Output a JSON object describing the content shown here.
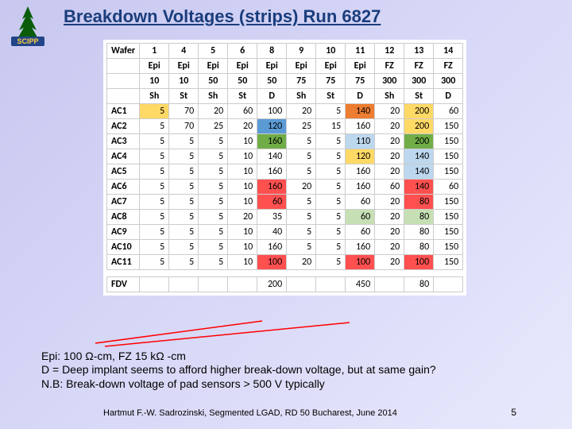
{
  "title": "Breakdown Voltages (strips) Run 6827",
  "logo_label": "SCIPP",
  "wafer_label": "Wafer",
  "header": {
    "cols": [
      "1",
      "4",
      "5",
      "6",
      "8",
      "9",
      "10",
      "11",
      "12",
      "13",
      "14"
    ],
    "mat": [
      "Epi",
      "Epi",
      "Epi",
      "Epi",
      "Epi",
      "Epi",
      "Epi",
      "Epi",
      "FZ",
      "FZ",
      "FZ"
    ],
    "thk": [
      "10",
      "10",
      "50",
      "50",
      "50",
      "75",
      "75",
      "75",
      "300",
      "300",
      "300"
    ],
    "typ": [
      "Sh",
      "St",
      "Sh",
      "St",
      "D",
      "Sh",
      "St",
      "D",
      "Sh",
      "St",
      "D"
    ]
  },
  "rows": [
    {
      "h": "AC1",
      "c": [
        {
          "v": "5",
          "k": "c-y"
        },
        {
          "v": "70"
        },
        {
          "v": "20"
        },
        {
          "v": "60"
        },
        {
          "v": "100"
        },
        {
          "v": "20"
        },
        {
          "v": "5"
        },
        {
          "v": "140",
          "k": "c-o"
        },
        {
          "v": "20"
        },
        {
          "v": "200",
          "k": "c-y"
        },
        {
          "v": "60"
        }
      ]
    },
    {
      "h": "AC2",
      "c": [
        {
          "v": "5"
        },
        {
          "v": "70"
        },
        {
          "v": "25"
        },
        {
          "v": "20"
        },
        {
          "v": "120",
          "k": "c-b"
        },
        {
          "v": "25"
        },
        {
          "v": "15"
        },
        {
          "v": "160"
        },
        {
          "v": "20"
        },
        {
          "v": "200",
          "k": "c-y"
        },
        {
          "v": "150"
        }
      ]
    },
    {
      "h": "AC3",
      "c": [
        {
          "v": "5"
        },
        {
          "v": "5"
        },
        {
          "v": "5"
        },
        {
          "v": "10"
        },
        {
          "v": "160",
          "k": "c-g"
        },
        {
          "v": "5"
        },
        {
          "v": "5"
        },
        {
          "v": "110",
          "k": "c-lb"
        },
        {
          "v": "20"
        },
        {
          "v": "200",
          "k": "c-g"
        },
        {
          "v": "150"
        }
      ]
    },
    {
      "h": "AC4",
      "c": [
        {
          "v": "5"
        },
        {
          "v": "5"
        },
        {
          "v": "5"
        },
        {
          "v": "10"
        },
        {
          "v": "140"
        },
        {
          "v": "5"
        },
        {
          "v": "5"
        },
        {
          "v": "120",
          "k": "c-y"
        },
        {
          "v": "20"
        },
        {
          "v": "140",
          "k": "c-lb"
        },
        {
          "v": "150"
        }
      ]
    },
    {
      "h": "AC5",
      "c": [
        {
          "v": "5"
        },
        {
          "v": "5"
        },
        {
          "v": "5"
        },
        {
          "v": "10"
        },
        {
          "v": "160"
        },
        {
          "v": "5"
        },
        {
          "v": "5"
        },
        {
          "v": "160"
        },
        {
          "v": "20"
        },
        {
          "v": "140",
          "k": "c-lb"
        },
        {
          "v": "150"
        }
      ]
    },
    {
      "h": "AC6",
      "c": [
        {
          "v": "5"
        },
        {
          "v": "5"
        },
        {
          "v": "5"
        },
        {
          "v": "10"
        },
        {
          "v": "160",
          "k": "c-r"
        },
        {
          "v": "20"
        },
        {
          "v": "5"
        },
        {
          "v": "160"
        },
        {
          "v": "60"
        },
        {
          "v": "140",
          "k": "c-r"
        },
        {
          "v": "60"
        }
      ]
    },
    {
      "h": "AC7",
      "c": [
        {
          "v": "5"
        },
        {
          "v": "5"
        },
        {
          "v": "5"
        },
        {
          "v": "10"
        },
        {
          "v": "60",
          "k": "c-r"
        },
        {
          "v": "5"
        },
        {
          "v": "5"
        },
        {
          "v": "60"
        },
        {
          "v": "20"
        },
        {
          "v": "80",
          "k": "c-r"
        },
        {
          "v": "150"
        }
      ]
    },
    {
      "h": "AC8",
      "c": [
        {
          "v": "5"
        },
        {
          "v": "5"
        },
        {
          "v": "5"
        },
        {
          "v": "20"
        },
        {
          "v": "35"
        },
        {
          "v": "5"
        },
        {
          "v": "5"
        },
        {
          "v": "60",
          "k": "c-lg"
        },
        {
          "v": "20"
        },
        {
          "v": "80",
          "k": "c-lg"
        },
        {
          "v": "150"
        }
      ]
    },
    {
      "h": "AC9",
      "c": [
        {
          "v": "5"
        },
        {
          "v": "5"
        },
        {
          "v": "5"
        },
        {
          "v": "10"
        },
        {
          "v": "40"
        },
        {
          "v": "5"
        },
        {
          "v": "5"
        },
        {
          "v": "60"
        },
        {
          "v": "20"
        },
        {
          "v": "80"
        },
        {
          "v": "150"
        }
      ]
    },
    {
      "h": "AC10",
      "c": [
        {
          "v": "5"
        },
        {
          "v": "5"
        },
        {
          "v": "5"
        },
        {
          "v": "10"
        },
        {
          "v": "160"
        },
        {
          "v": "5"
        },
        {
          "v": "5"
        },
        {
          "v": "160"
        },
        {
          "v": "20"
        },
        {
          "v": "80"
        },
        {
          "v": "150"
        }
      ]
    },
    {
      "h": "AC11",
      "c": [
        {
          "v": "5"
        },
        {
          "v": "5"
        },
        {
          "v": "5"
        },
        {
          "v": "10"
        },
        {
          "v": "100",
          "k": "c-r"
        },
        {
          "v": "20"
        },
        {
          "v": "5"
        },
        {
          "v": "100",
          "k": "c-r"
        },
        {
          "v": "20"
        },
        {
          "v": "100",
          "k": "c-r"
        },
        {
          "v": "150"
        }
      ]
    }
  ],
  "fdv": {
    "h": "FDV",
    "c": [
      "",
      "",
      "",
      "",
      "200",
      "",
      "",
      "450",
      "",
      "80",
      ""
    ]
  },
  "notes": [
    "Epi: 100 Ω-cm, FZ 15 kΩ -cm",
    "D = Deep implant seems to afford higher break-down voltage, but at same gain?",
    "N.B: Break-down voltage of pad sensors > 500 V typically"
  ],
  "footer": "Hartmut F.-W. Sadrozinski, Segmented LGAD, RD 50 Bucharest, June 2014",
  "pagenum": "5"
}
